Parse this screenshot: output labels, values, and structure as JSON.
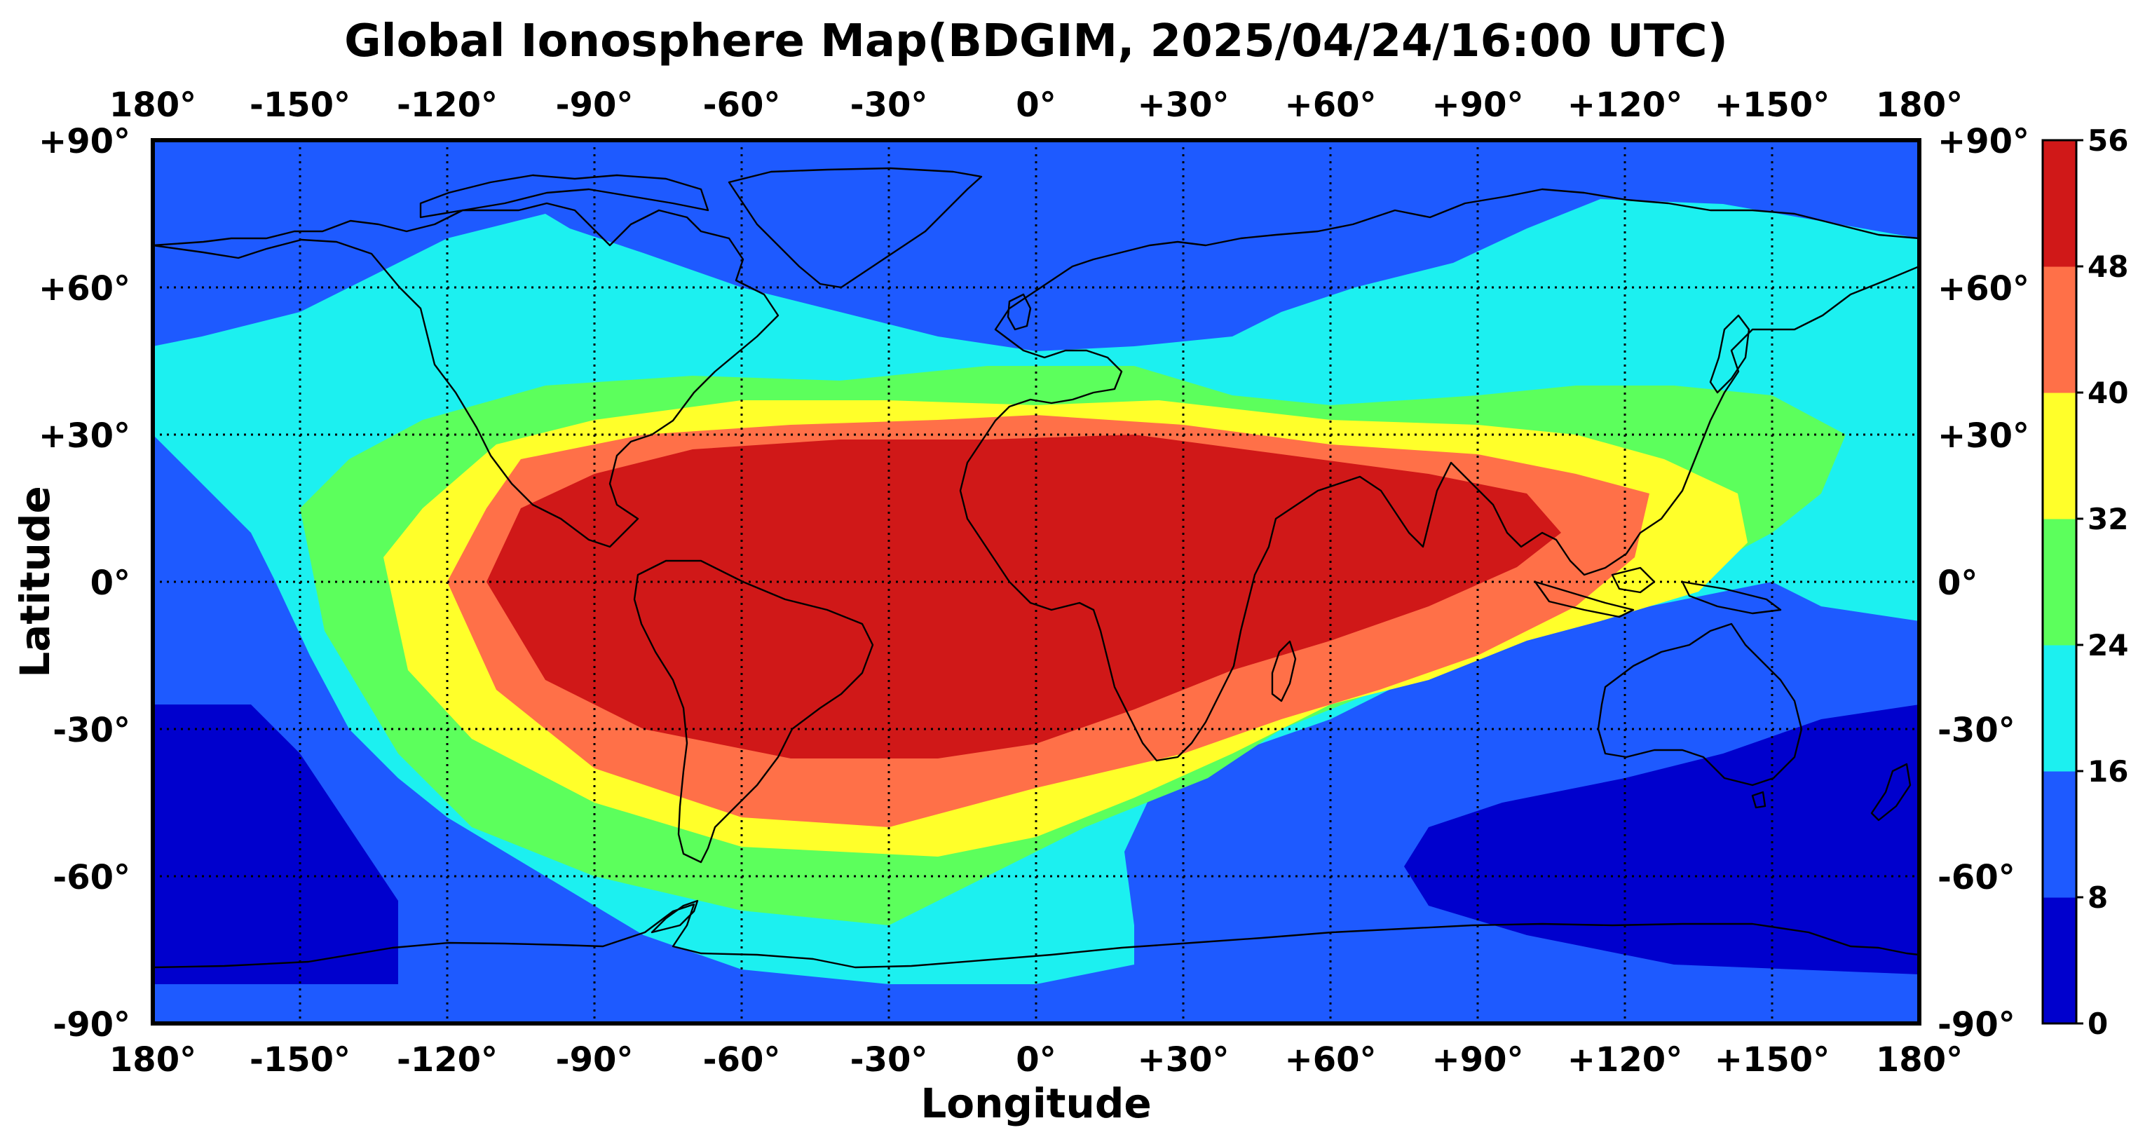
{
  "title": "Global Ionosphere Map(BDGIM, 2025/04/24/16:00 UTC)",
  "xlabel": "Longitude",
  "ylabel": "Latitude",
  "lon_ticks": [
    "180°",
    "-150°",
    "-120°",
    "-90°",
    "-60°",
    "-30°",
    "0°",
    "+30°",
    "+60°",
    "+90°",
    "+120°",
    "+150°",
    "180°"
  ],
  "lat_ticks": [
    "+90°",
    "+60°",
    "+30°",
    "0°",
    "-30°",
    "-60°",
    "-90°"
  ],
  "colorbar": {
    "ticks": [
      "56",
      "48",
      "40",
      "32",
      "24",
      "16",
      "8",
      "0"
    ],
    "levels": [
      0,
      8,
      16,
      24,
      32,
      40,
      48,
      56
    ],
    "colors": [
      "#0000cd",
      "#1e5aff",
      "#1cf0f0",
      "#5cff5c",
      "#ffff2a",
      "#ff7048",
      "#d01818"
    ]
  },
  "grid": "dotted"
}
